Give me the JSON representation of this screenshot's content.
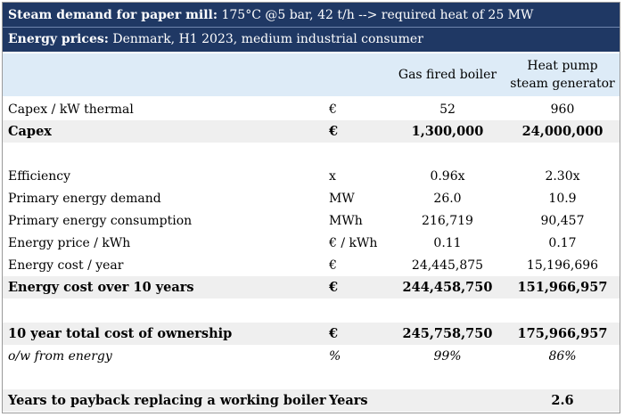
{
  "header": {
    "line1_bold": "Steam demand for paper mill:",
    "line1_rest": " 175°C @5 bar, 42 t/h --> required heat of 25 MW",
    "line2_bold": "Energy prices:",
    "line2_rest": " Denmark, H1 2023, medium industrial consumer"
  },
  "columns": {
    "gas": "Gas fired boiler",
    "heat_pump": "Heat pump steam generator"
  },
  "rows": [
    {
      "label": "Capex / kW thermal",
      "unit": "€",
      "gas": "52",
      "hp": "960"
    },
    {
      "label": "Capex",
      "unit": "€",
      "gas": "1,300,000",
      "hp": "24,000,000"
    },
    {
      "label": "",
      "unit": "",
      "gas": "",
      "hp": ""
    },
    {
      "label": "Efficiency",
      "unit": "x",
      "gas": "0.96x",
      "hp": "2.30x"
    },
    {
      "label": "Primary energy demand",
      "unit": "MW",
      "gas": "26.0",
      "hp": "10.9"
    },
    {
      "label": "Primary energy consumption",
      "unit": "MWh",
      "gas": "216,719",
      "hp": "90,457"
    },
    {
      "label": "Energy price / kWh",
      "unit": "€ / kWh",
      "gas": "0.11",
      "hp": "0.17"
    },
    {
      "label": "Energy cost / year",
      "unit": "€",
      "gas": "24,445,875",
      "hp": "15,196,696"
    },
    {
      "label": "Energy cost over 10 years",
      "unit": "€",
      "gas": "244,458,750",
      "hp": "151,966,957"
    },
    {
      "label": "",
      "unit": "",
      "gas": "",
      "hp": ""
    },
    {
      "label": "10 year total cost of ownership",
      "unit": "€",
      "gas": "245,758,750",
      "hp": "175,966,957"
    },
    {
      "label": "o/w from energy",
      "unit": "%",
      "gas": "99%",
      "hp": "86%"
    },
    {
      "label": "",
      "unit": "",
      "gas": "",
      "hp": ""
    },
    {
      "label": "Years to payback replacing a working boiler",
      "unit": "Years",
      "gas": "",
      "hp": "2.6"
    }
  ]
}
